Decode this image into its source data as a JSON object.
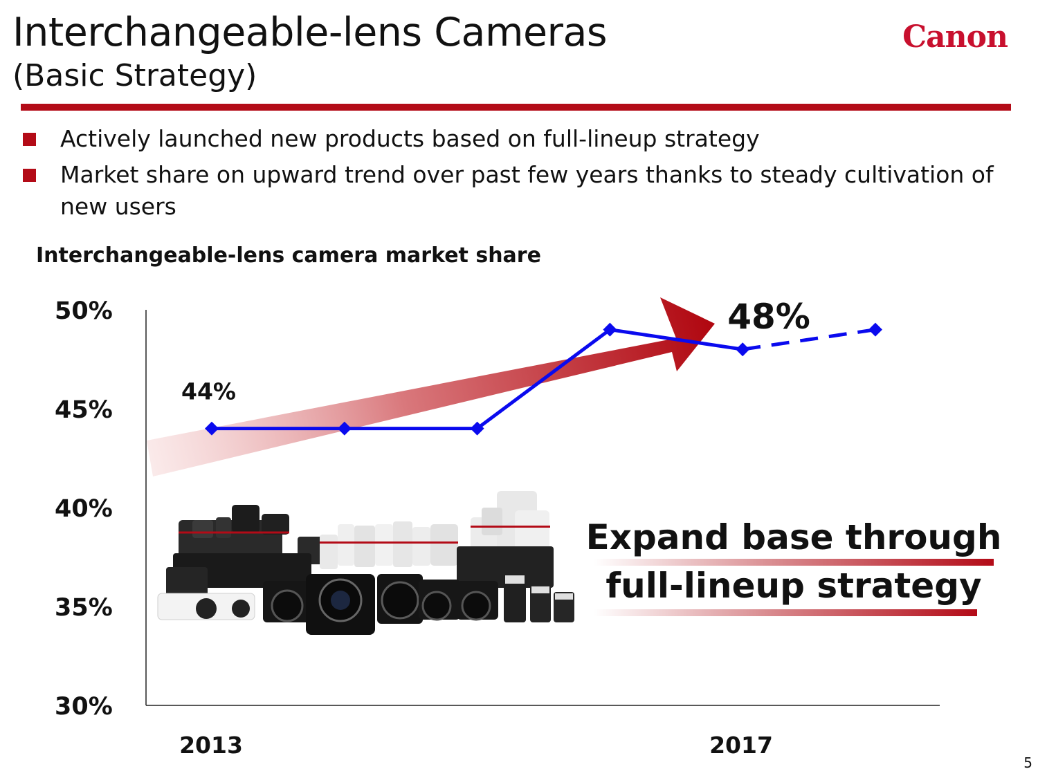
{
  "header": {
    "title": "Interchangeable-lens Cameras",
    "subtitle": "(Basic Strategy)",
    "logo_text": "Canon"
  },
  "bullets": [
    "Actively launched new products based on full-lineup strategy",
    "Market share on upward trend over past few years thanks to steady cultivation of new users"
  ],
  "chart_data": {
    "type": "line",
    "title": "Interchangeable-lens camera market share",
    "y_ticks": [
      "50%",
      "45%",
      "40%",
      "35%",
      "30%"
    ],
    "ylim": [
      30,
      50
    ],
    "x_labels": [
      "2013",
      "2017"
    ],
    "x": [
      2013,
      2014,
      2015,
      2016,
      2017,
      2018
    ],
    "series": [
      {
        "values": [
          44,
          44,
          44,
          49,
          48,
          49
        ],
        "style": "solid until 2017, dashed after",
        "color": "#0a0aee"
      }
    ],
    "data_labels": [
      {
        "x": 2013,
        "text": "44%"
      },
      {
        "x": 2017,
        "text": "48%"
      }
    ],
    "annotation": [
      "Expand base through",
      "full-lineup strategy"
    ],
    "trend_arrow": "red gradient upward arrow",
    "grid": false,
    "image": "collection of cameras and lenses"
  },
  "colors": {
    "accent_red": "#b30b17",
    "line_blue": "#0a0aee",
    "logo_red": "#c8102e"
  },
  "footer": {
    "page_number": "5"
  }
}
